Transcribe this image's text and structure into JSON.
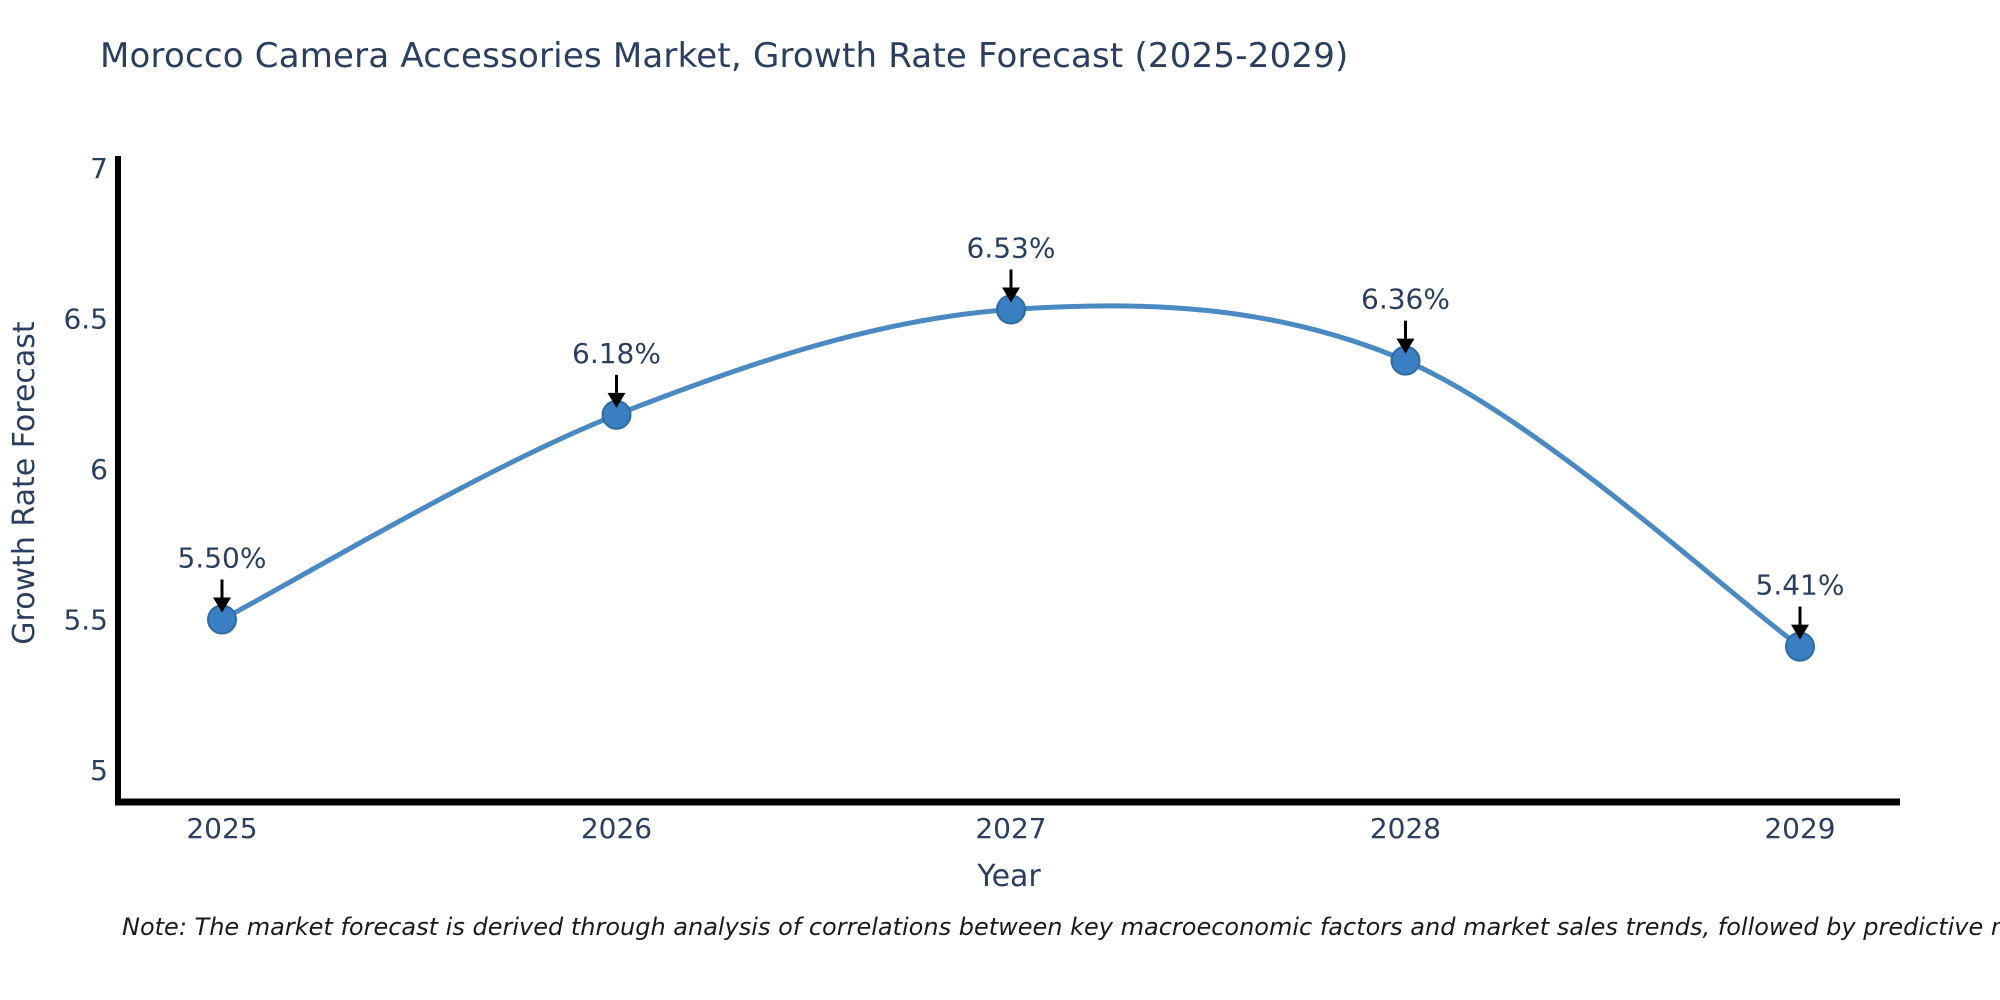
{
  "chart_data": {
    "type": "line",
    "title": "Morocco Camera Accessories Market, Growth Rate Forecast (2025-2029)",
    "xlabel": "Year",
    "ylabel": "Growth Rate Forecast",
    "categories": [
      "2025",
      "2026",
      "2027",
      "2028",
      "2029"
    ],
    "values": [
      5.5,
      6.18,
      6.53,
      6.36,
      5.41
    ],
    "point_labels": [
      "5.50%",
      "6.18%",
      "6.53%",
      "6.36%",
      "5.41%"
    ],
    "yticks": [
      5,
      5.5,
      6,
      6.5,
      7
    ],
    "ytick_labels": [
      "5",
      "5.5",
      "6",
      "6.5",
      "7"
    ],
    "ylim": [
      4.89,
      7.03
    ],
    "grid": false,
    "legend": false,
    "line_style": "smooth-spline",
    "marker_style": "circle",
    "annotation_arrow": "down-black",
    "colors": {
      "line": "#4a89c2",
      "marker": "#3a7fc1",
      "marker_edge": "#2f6ba3",
      "axis": "#000000",
      "text": "#2a3f5f",
      "arrow": "#000000",
      "note": "#1a1a1a",
      "background": "#ffffff"
    },
    "note": "Note: The market forecast is derived through analysis of correlations between key macroeconomic factors and market sales trends, followed by predictive modeling to project future sales"
  }
}
